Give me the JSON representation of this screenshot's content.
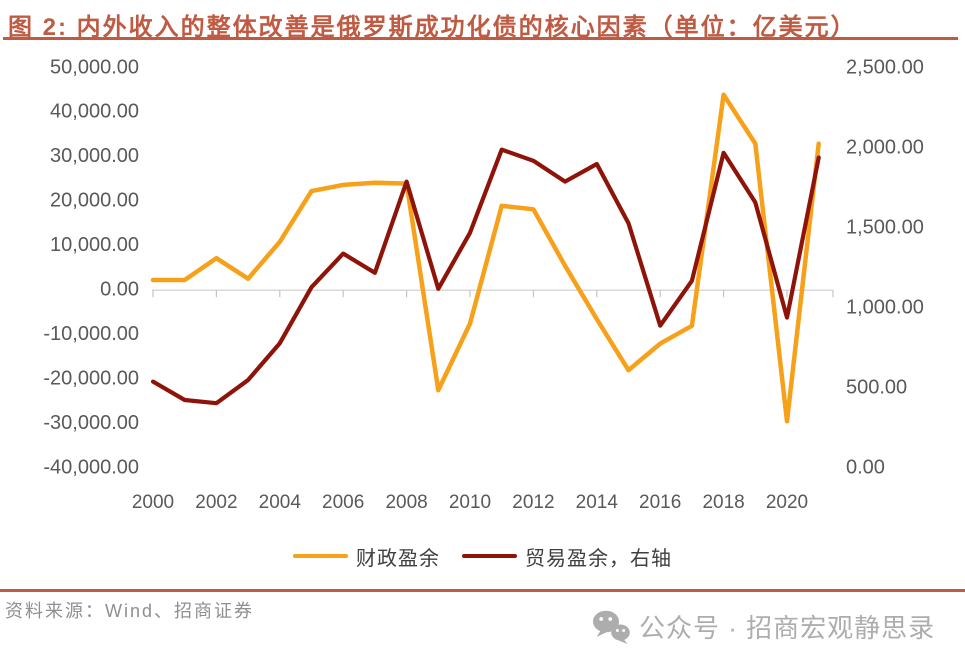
{
  "title": {
    "text": "图 2: 内外收入的整体改善是俄罗斯成功化债的核心因素（单位：亿美元）"
  },
  "chart_data": {
    "type": "line",
    "x": [
      2000,
      2001,
      2002,
      2003,
      2004,
      2005,
      2006,
      2007,
      2008,
      2009,
      2010,
      2011,
      2012,
      2013,
      2014,
      2015,
      2016,
      2017,
      2018,
      2019,
      2020,
      2021
    ],
    "series": [
      {
        "name": "财政盈余",
        "axis": "left",
        "color": "#F7A11A",
        "values": [
          2300,
          2300,
          7200,
          2600,
          10900,
          22300,
          23700,
          24200,
          24000,
          -22500,
          -7500,
          19000,
          18200,
          5500,
          -6500,
          -18000,
          -12000,
          -8000,
          44000,
          33000,
          -29500,
          33000
        ]
      },
      {
        "name": "贸易盈余，右轴",
        "axis": "right",
        "color": "#8E1409",
        "values": [
          540,
          425,
          405,
          550,
          780,
          1130,
          1340,
          1220,
          1790,
          1120,
          1470,
          1990,
          1920,
          1790,
          1900,
          1530,
          890,
          1170,
          1970,
          1660,
          940,
          1940
        ]
      }
    ],
    "left_axis": {
      "min": -40000,
      "max": 50000,
      "tick_values": [
        50000,
        40000,
        30000,
        20000,
        10000,
        0,
        -10000,
        -20000,
        -30000,
        -40000
      ],
      "tick_labels": [
        "50,000.00",
        "40,000.00",
        "30,000.00",
        "20,000.00",
        "10,000.00",
        "0.00",
        "-10,000.00",
        "-20,000.00",
        "-30,000.00",
        "-40,000.00"
      ]
    },
    "right_axis": {
      "min": 0,
      "max": 2500,
      "tick_values": [
        2500,
        2000,
        1500,
        1000,
        500,
        0
      ],
      "tick_labels": [
        "2,500.00",
        "2,000.00",
        "1,500.00",
        "1,000.00",
        "500.00",
        "0.00"
      ]
    },
    "x_axis": {
      "tick_values": [
        2000,
        2002,
        2004,
        2006,
        2008,
        2010,
        2012,
        2014,
        2016,
        2018,
        2020
      ],
      "tick_labels": [
        "2000",
        "2002",
        "2004",
        "2006",
        "2008",
        "2010",
        "2012",
        "2014",
        "2016",
        "2018",
        "2020"
      ]
    },
    "grid": "zero-line-only",
    "legend_position": "bottom-center"
  },
  "footer": {
    "source": "资料来源：Wind、招商证券",
    "wechat_label": "公众号 · 招商宏观静思录",
    "wechat_icon": "wechat-chat-bubbles-icon"
  },
  "colors": {
    "accent_rust": "#BF5B42",
    "series_fiscal": "#F7A11A",
    "series_trade": "#8E1409",
    "axis_text": "#595959",
    "legend_text": "#3F3F3F",
    "zero_line": "#D9D9D9",
    "tick_mark": "#C4C4C4",
    "source_text": "#8F8F8F",
    "wechat_gray": "#ADADAD"
  }
}
